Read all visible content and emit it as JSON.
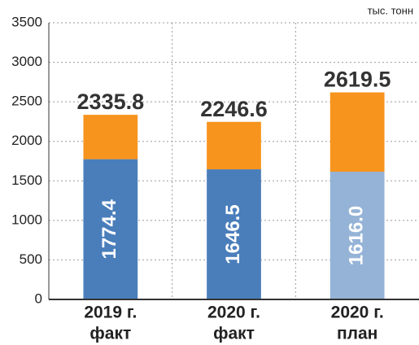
{
  "chart_data": {
    "type": "stacked-bar",
    "unit_label": "тыс. тонн",
    "categories": [
      [
        "2019 г.",
        "факт"
      ],
      [
        "2020 г.",
        "факт"
      ],
      [
        "2020 г.",
        "план"
      ]
    ],
    "series": [
      {
        "colors": [
          "#4a7ebb",
          "#4a7ebb",
          "#95b3d7"
        ],
        "values": [
          1774.4,
          1646.5,
          1616
        ],
        "value_labels": [
          "1774.4",
          "1646.5",
          "1616.0"
        ]
      },
      {
        "color": "#f7941d",
        "values": [
          561.4,
          600.1,
          1003.5
        ]
      }
    ],
    "totals": [
      2335.8,
      2246.6,
      2619.5
    ],
    "ylim": [
      0,
      3500
    ],
    "yticks": [
      0,
      500,
      1000,
      1500,
      2000,
      2500,
      3000,
      3500
    ],
    "grid": true
  }
}
